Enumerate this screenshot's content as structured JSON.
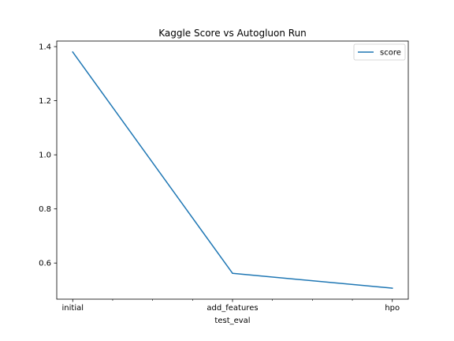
{
  "chart_data": {
    "type": "line",
    "title": "Kaggle Score vs Autogluon Run",
    "xlabel": "test_eval",
    "ylabel": "",
    "categories": [
      "initial",
      "add_features",
      "hpo"
    ],
    "series": [
      {
        "name": "score",
        "values": [
          1.38,
          0.562,
          0.507
        ],
        "color": "#1f77b4"
      }
    ],
    "xlim": [
      -0.1,
      2.1
    ],
    "ylim": [
      0.4664,
      1.4206
    ],
    "yticks": [
      0.6,
      0.8,
      1.0,
      1.2,
      1.4
    ],
    "ytick_labels": [
      "0.6",
      "0.8",
      "1.0",
      "1.2",
      "1.4"
    ],
    "x_minor_ticks": [
      0.25,
      0.5,
      0.75,
      1.25,
      1.5,
      1.75
    ],
    "grid": false,
    "legend_position": "top-right"
  }
}
